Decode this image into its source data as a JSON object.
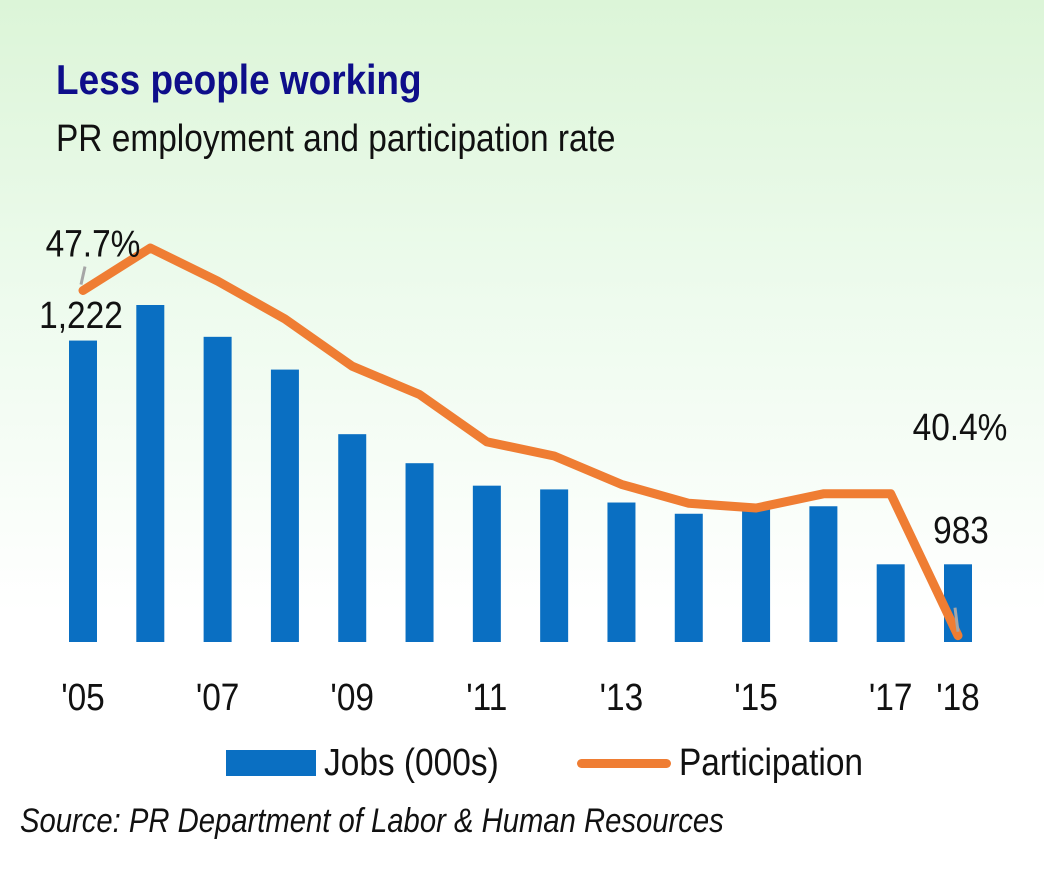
{
  "title": "Less people working",
  "subtitle": "PR employment and participation rate",
  "legend": {
    "jobs_label": "Jobs (000s)",
    "participation_label": "Participation"
  },
  "source": "Source: PR Department of Labor & Human Resources",
  "colors": {
    "bar": "#0a6fc2",
    "line": "#ef7d33",
    "leader": "#a6a6a6",
    "title": "#0e0e8a"
  },
  "chart_data": {
    "type": "bar",
    "categories": [
      "2005",
      "2006",
      "2007",
      "2008",
      "2009",
      "2010",
      "2011",
      "2012",
      "2013",
      "2014",
      "2015",
      "2016",
      "2017",
      "2018"
    ],
    "tick_labels": [
      "'05",
      "",
      "'07",
      "",
      "'09",
      "",
      "'11",
      "",
      "'13",
      "",
      "'15",
      "",
      "'17",
      "'18"
    ],
    "series": [
      {
        "name": "Jobs (000s)",
        "type": "bar",
        "values": [
          1222,
          1260,
          1226,
          1191,
          1122,
          1091,
          1067,
          1063,
          1049,
          1037,
          1045,
          1045,
          983,
          983
        ],
        "labels": {
          "0": "1,222",
          "13": "983"
        }
      },
      {
        "name": "Participation",
        "type": "line",
        "values": [
          47.7,
          48.6,
          47.9,
          47.1,
          46.1,
          45.5,
          44.5,
          44.2,
          43.6,
          43.2,
          43.1,
          43.4,
          43.4,
          40.4
        ],
        "labels": {
          "0": "47.7%",
          "13": "40.4%"
        }
      }
    ]
  }
}
